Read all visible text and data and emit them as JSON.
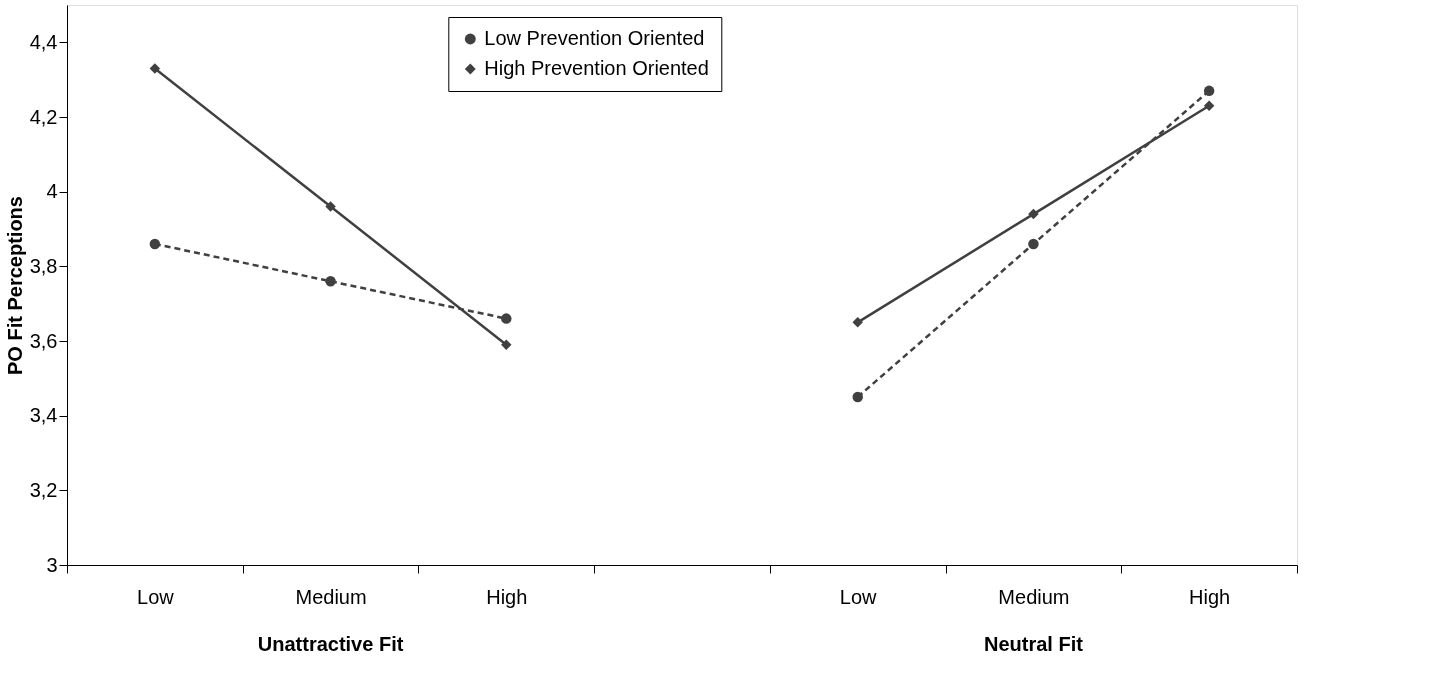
{
  "chart_data": {
    "type": "line",
    "ylabel": "PO Fit Perceptions",
    "categories": [
      "Low",
      "Medium",
      "High",
      null,
      "Low",
      "Medium",
      "High"
    ],
    "series": [
      {
        "name": "Low Prevention Oriented",
        "color": "#404040",
        "marker": "circle",
        "line_style": "dashed",
        "values": [
          3.86,
          3.76,
          3.66,
          null,
          3.45,
          3.86,
          4.27
        ]
      },
      {
        "name": "High Prevention Oriented",
        "color": "#404040",
        "marker": "diamond",
        "line_style": "solid",
        "values": [
          4.33,
          3.96,
          3.59,
          null,
          3.65,
          3.94,
          4.23
        ]
      }
    ],
    "ylim": [
      3,
      4.5
    ],
    "yticks": [
      3,
      {
        "value": 3.2,
        "label": "3,2"
      },
      {
        "value": 3.4,
        "label": "3,4"
      },
      {
        "value": 3.6,
        "label": "3,6"
      },
      {
        "value": 3.8,
        "label": "3,8"
      },
      4,
      {
        "value": 4.2,
        "label": "4,2"
      },
      {
        "value": 4.4,
        "label": "4,4"
      }
    ],
    "annotations": [
      "Unattractive Fit",
      "Neutral Fit"
    ],
    "legend": "top",
    "grid": false
  }
}
